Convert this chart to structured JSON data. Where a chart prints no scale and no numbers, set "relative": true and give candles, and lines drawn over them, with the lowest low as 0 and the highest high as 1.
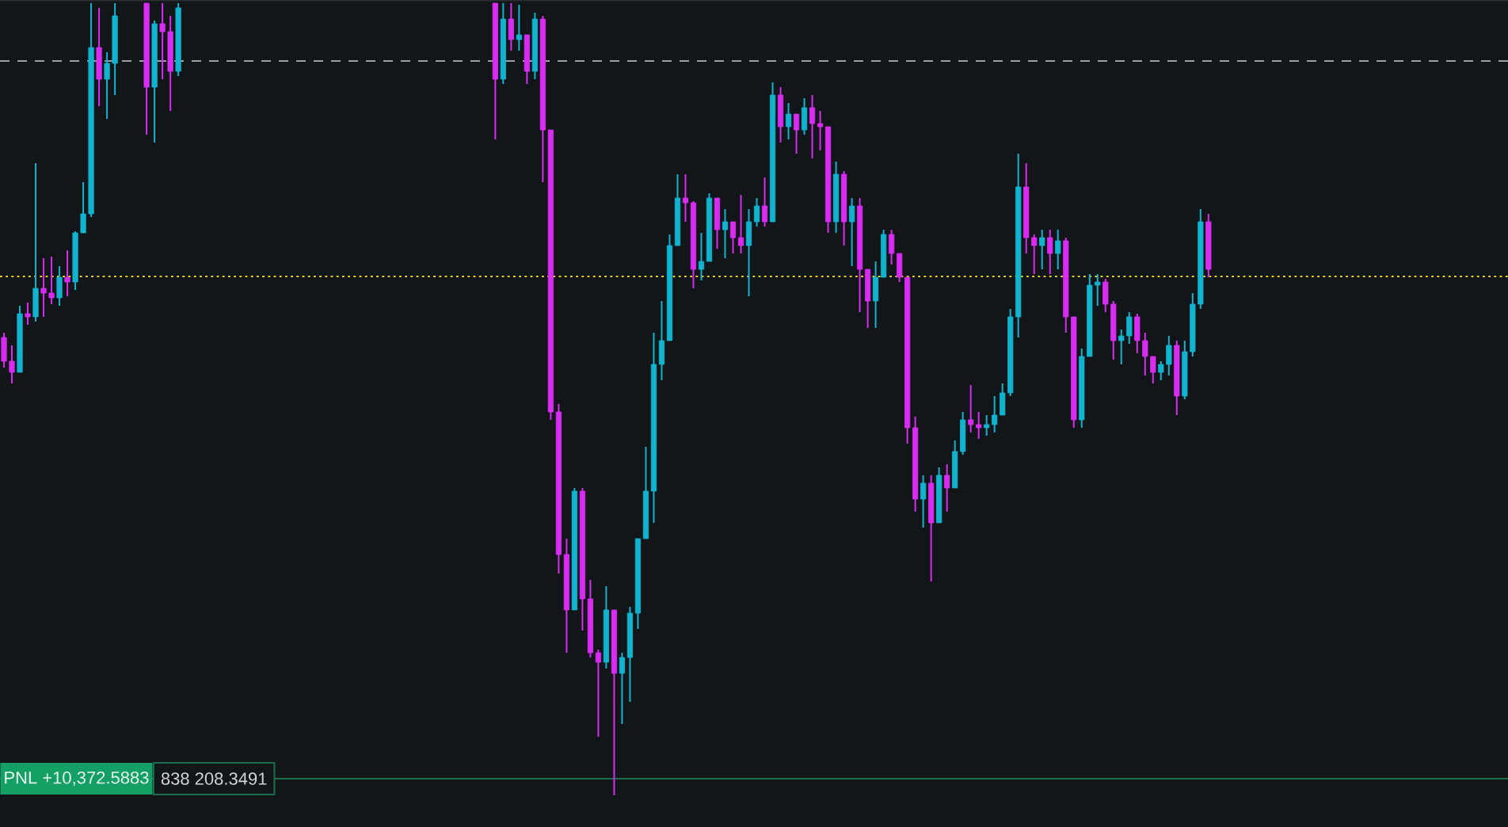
{
  "chart_data": {
    "type": "candlestick",
    "relative": true,
    "categories": [
      null,
      null,
      null,
      null,
      null,
      null,
      null,
      null,
      null,
      null,
      null,
      null,
      null,
      null,
      null,
      null,
      null,
      null,
      null,
      null,
      null,
      null,
      null,
      null,
      null,
      null,
      null,
      null,
      null,
      null,
      null,
      null,
      null,
      null,
      null,
      null,
      null,
      null,
      null,
      null,
      null,
      null,
      null,
      null,
      null,
      null,
      null,
      null,
      null,
      null,
      null,
      null,
      null,
      null,
      null,
      null,
      null,
      null,
      null,
      null,
      null,
      null,
      null,
      null,
      null,
      null,
      null,
      null,
      null,
      null,
      null,
      null,
      null,
      null,
      null,
      null,
      null,
      null,
      null,
      null,
      null,
      null,
      null,
      null,
      null,
      null,
      null,
      null,
      null,
      null,
      null,
      null,
      null,
      null,
      null,
      null,
      null,
      null,
      null,
      null,
      null,
      null,
      null,
      null,
      null,
      null,
      null,
      null,
      null,
      null,
      null,
      null,
      null,
      null,
      null,
      null,
      null,
      null,
      null,
      null,
      null,
      null,
      null,
      null,
      null,
      null,
      null,
      null,
      null,
      null,
      null,
      null,
      null,
      null,
      null,
      null,
      null,
      null,
      null,
      null,
      null,
      null,
      null,
      null,
      null,
      null,
      null,
      null,
      null,
      null,
      null,
      null,
      null
    ],
    "ohlc": [
      [
        0.578,
        0.584,
        0.54,
        0.548
      ],
      [
        0.548,
        0.568,
        0.52,
        0.534
      ],
      [
        0.534,
        0.618,
        0.534,
        0.608
      ],
      [
        0.608,
        0.622,
        0.594,
        0.604
      ],
      [
        0.604,
        0.798,
        0.598,
        0.64
      ],
      [
        0.64,
        0.678,
        0.604,
        0.634
      ],
      [
        0.634,
        0.68,
        0.62,
        0.628
      ],
      [
        0.628,
        0.668,
        0.618,
        0.654
      ],
      [
        0.654,
        0.688,
        0.63,
        0.648
      ],
      [
        0.648,
        0.712,
        0.638,
        0.71
      ],
      [
        0.71,
        0.774,
        0.71,
        0.734
      ],
      [
        0.734,
        1,
        0.73,
        0.944
      ],
      [
        0.944,
        0.994,
        0.87,
        0.904
      ],
      [
        0.904,
        0.938,
        0.854,
        0.924
      ],
      [
        0.924,
        1,
        0.884,
        0.984
      ],
      null,
      null,
      null,
      [
        1,
        1,
        0.834,
        0.894
      ],
      [
        0.894,
        0.978,
        0.824,
        0.974
      ],
      [
        0.974,
        1,
        0.904,
        0.964
      ],
      [
        0.964,
        0.984,
        0.864,
        0.914
      ],
      [
        0.914,
        1,
        0.908,
        0.994
      ],
      null,
      null,
      null,
      null,
      null,
      null,
      null,
      null,
      null,
      null,
      null,
      null,
      null,
      null,
      null,
      null,
      null,
      null,
      null,
      null,
      null,
      null,
      null,
      null,
      null,
      null,
      null,
      null,
      null,
      null,
      null,
      null,
      null,
      null,
      null,
      null,
      null,
      null,
      null,
      [
        1,
        1,
        0.828,
        0.904
      ],
      [
        0.904,
        1,
        0.898,
        0.98
      ],
      [
        0.98,
        1,
        0.94,
        0.954
      ],
      [
        0.954,
        0.998,
        0.94,
        0.96
      ],
      [
        0.96,
        0.96,
        0.898,
        0.914
      ],
      [
        0.914,
        0.988,
        0.904,
        0.98
      ],
      [
        0.98,
        0.984,
        0.774,
        0.84
      ],
      [
        0.84,
        0.84,
        0.474,
        0.484
      ],
      [
        0.484,
        0.494,
        0.28,
        0.304
      ],
      [
        0.304,
        0.324,
        0.18,
        0.234
      ],
      [
        0.234,
        0.388,
        0.234,
        0.384
      ],
      [
        0.384,
        0.388,
        0.208,
        0.248
      ],
      [
        0.248,
        0.272,
        0.174,
        0.18
      ],
      [
        0.18,
        0.184,
        0.074,
        0.168
      ],
      [
        0.168,
        0.264,
        0.16,
        0.234
      ],
      [
        0.234,
        0.234,
        0,
        0.154
      ],
      [
        0.154,
        0.18,
        0.09,
        0.174
      ],
      [
        0.174,
        0.238,
        0.118,
        0.23
      ],
      [
        0.23,
        0.324,
        0.21,
        0.324
      ],
      [
        0.324,
        0.44,
        0.324,
        0.384
      ],
      [
        0.384,
        0.584,
        0.344,
        0.544
      ],
      [
        0.544,
        0.624,
        0.524,
        0.574
      ],
      [
        0.574,
        0.708,
        0.574,
        0.694
      ],
      [
        0.694,
        0.784,
        0.694,
        0.754
      ],
      [
        0.754,
        0.784,
        0.724,
        0.748
      ],
      [
        0.748,
        0.75,
        0.64,
        0.664
      ],
      [
        0.664,
        0.71,
        0.65,
        0.674
      ],
      [
        0.674,
        0.76,
        0.674,
        0.754
      ],
      [
        0.754,
        0.754,
        0.69,
        0.714
      ],
      [
        0.714,
        0.74,
        0.678,
        0.724
      ],
      [
        0.724,
        0.724,
        0.684,
        0.704
      ],
      [
        0.704,
        0.758,
        0.684,
        0.694
      ],
      [
        0.694,
        0.74,
        0.63,
        0.724
      ],
      [
        0.724,
        0.754,
        0.718,
        0.744
      ],
      [
        0.744,
        0.78,
        0.718,
        0.724
      ],
      [
        0.724,
        0.9,
        0.724,
        0.884
      ],
      [
        0.884,
        0.894,
        0.824,
        0.844
      ],
      [
        0.844,
        0.874,
        0.828,
        0.86
      ],
      [
        0.86,
        0.86,
        0.81,
        0.84
      ],
      [
        0.84,
        0.88,
        0.834,
        0.868
      ],
      [
        0.868,
        0.884,
        0.804,
        0.848
      ],
      [
        0.848,
        0.864,
        0.814,
        0.844
      ],
      [
        0.844,
        0.844,
        0.71,
        0.724
      ],
      [
        0.724,
        0.8,
        0.71,
        0.784
      ],
      [
        0.784,
        0.788,
        0.694,
        0.724
      ],
      [
        0.724,
        0.754,
        0.668,
        0.744
      ],
      [
        0.744,
        0.754,
        0.61,
        0.664
      ],
      [
        0.664,
        0.664,
        0.59,
        0.624
      ],
      [
        0.624,
        0.674,
        0.59,
        0.654
      ],
      [
        0.654,
        0.714,
        0.654,
        0.708
      ],
      [
        0.708,
        0.714,
        0.67,
        0.684
      ],
      [
        0.684,
        0.684,
        0.648,
        0.654
      ],
      [
        0.654,
        0.654,
        0.444,
        0.464
      ],
      [
        0.464,
        0.478,
        0.358,
        0.374
      ],
      [
        0.374,
        0.404,
        0.338,
        0.394
      ],
      [
        0.394,
        0.404,
        0.27,
        0.344
      ],
      [
        0.344,
        0.414,
        0.344,
        0.404
      ],
      [
        0.404,
        0.418,
        0.358,
        0.388
      ],
      [
        0.388,
        0.448,
        0.388,
        0.434
      ],
      [
        0.434,
        0.484,
        0.43,
        0.474
      ],
      [
        0.474,
        0.518,
        0.458,
        0.468
      ],
      [
        0.468,
        0.484,
        0.45,
        0.464
      ],
      [
        0.464,
        0.48,
        0.454,
        0.468
      ],
      [
        0.468,
        0.504,
        0.458,
        0.48
      ],
      [
        0.48,
        0.52,
        0.48,
        0.508
      ],
      [
        0.508,
        0.614,
        0.504,
        0.604
      ],
      [
        0.604,
        0.81,
        0.578,
        0.768
      ],
      [
        0.768,
        0.798,
        0.684,
        0.704
      ],
      [
        0.704,
        0.708,
        0.658,
        0.694
      ],
      [
        0.694,
        0.714,
        0.664,
        0.704
      ],
      [
        0.704,
        0.714,
        0.658,
        0.684
      ],
      [
        0.684,
        0.714,
        0.664,
        0.7
      ],
      [
        0.7,
        0.704,
        0.584,
        0.604
      ],
      [
        0.604,
        0.604,
        0.464,
        0.474
      ],
      [
        0.474,
        0.564,
        0.464,
        0.554
      ],
      [
        0.554,
        0.658,
        0.554,
        0.644
      ],
      [
        0.644,
        0.658,
        0.618,
        0.648
      ],
      [
        0.648,
        0.652,
        0.61,
        0.62
      ],
      [
        0.62,
        0.624,
        0.55,
        0.574
      ],
      [
        0.574,
        0.588,
        0.544,
        0.58
      ],
      [
        0.58,
        0.61,
        0.57,
        0.604
      ],
      [
        0.604,
        0.608,
        0.558,
        0.574
      ],
      [
        0.574,
        0.584,
        0.53,
        0.554
      ],
      [
        0.554,
        0.554,
        0.52,
        0.534
      ],
      [
        0.534,
        0.548,
        0.524,
        0.544
      ],
      [
        0.544,
        0.58,
        0.53,
        0.568
      ],
      [
        0.568,
        0.574,
        0.48,
        0.504
      ],
      [
        0.504,
        0.574,
        0.5,
        0.56
      ],
      [
        0.56,
        0.634,
        0.554,
        0.62
      ],
      [
        0.62,
        0.74,
        0.614,
        0.724
      ],
      [
        0.724,
        0.734,
        0.654,
        0.664
      ]
    ],
    "colors": [
      "#d82cf2",
      "#d82cf2",
      "#12b3cf",
      "#d82cf2",
      "#12b3cf",
      "#d82cf2",
      "#d82cf2",
      "#12b3cf",
      "#d82cf2",
      "#12b3cf",
      "#12b3cf",
      "#12b3cf",
      "#d82cf2",
      "#12b3cf",
      "#12b3cf",
      null,
      null,
      null,
      "#d82cf2",
      "#12b3cf",
      "#d82cf2",
      "#d82cf2",
      "#12b3cf",
      null,
      null,
      null,
      null,
      null,
      null,
      null,
      null,
      null,
      null,
      null,
      null,
      null,
      null,
      null,
      null,
      null,
      null,
      null,
      null,
      null,
      null,
      null,
      null,
      null,
      null,
      null,
      null,
      null,
      null,
      null,
      null,
      null,
      null,
      null,
      null,
      null,
      null,
      null,
      "#d82cf2",
      "#12b3cf",
      "#d82cf2",
      "#12b3cf",
      "#d82cf2",
      "#12b3cf",
      "#d82cf2",
      "#d82cf2",
      "#d82cf2",
      "#d82cf2",
      "#12b3cf",
      "#d82cf2",
      "#d82cf2",
      "#d82cf2",
      "#12b3cf",
      "#d82cf2",
      "#12b3cf",
      "#12b3cf",
      "#12b3cf",
      "#12b3cf",
      "#12b3cf",
      "#12b3cf",
      "#12b3cf",
      "#12b3cf",
      "#d82cf2",
      "#d82cf2",
      "#12b3cf",
      "#12b3cf",
      "#d82cf2",
      "#12b3cf",
      "#d82cf2",
      "#d82cf2",
      "#12b3cf",
      "#12b3cf",
      "#d82cf2",
      "#12b3cf",
      "#d82cf2",
      "#12b3cf",
      "#d82cf2",
      "#12b3cf",
      "#d82cf2",
      "#d82cf2",
      "#d82cf2",
      "#12b3cf",
      "#d82cf2",
      "#12b3cf",
      "#d82cf2",
      "#d82cf2",
      "#12b3cf",
      "#12b3cf",
      "#d82cf2",
      "#d82cf2",
      "#d82cf2",
      "#d82cf2",
      "#12b3cf",
      "#d82cf2",
      "#12b3cf",
      "#d82cf2",
      "#12b3cf",
      "#12b3cf",
      "#d82cf2",
      "#d82cf2",
      "#12b3cf",
      "#12b3cf",
      "#12b3cf",
      "#12b3cf",
      "#12b3cf",
      "#d82cf2",
      "#d82cf2",
      "#12b3cf",
      "#d82cf2",
      "#12b3cf",
      "#d82cf2",
      "#d82cf2",
      "#12b3cf",
      "#12b3cf",
      "#12b3cf",
      "#d82cf2",
      "#d82cf2",
      "#12b3cf",
      "#12b3cf",
      "#d82cf2",
      "#d82cf2",
      "#d82cf2",
      "#12b3cf",
      "#12b3cf",
      "#d82cf2",
      "#12b3cf",
      "#12b3cf",
      "#12b3cf",
      "#d82cf2"
    ],
    "ref_lines": [
      {
        "axis": "y",
        "value": 0.927,
        "color": "#9a9ea6",
        "line_style": "dashed"
      },
      {
        "axis": "y",
        "value": 0.655,
        "color": "#e8d81a",
        "line_style": "dotted"
      },
      {
        "axis": "y",
        "value": 0.021,
        "color": "#1b6e4c",
        "line_style": "solid"
      }
    ],
    "annotations": [
      {
        "text": "PNL +10,372.5883",
        "y": 0.021
      },
      "838 208.3491"
    ]
  }
}
